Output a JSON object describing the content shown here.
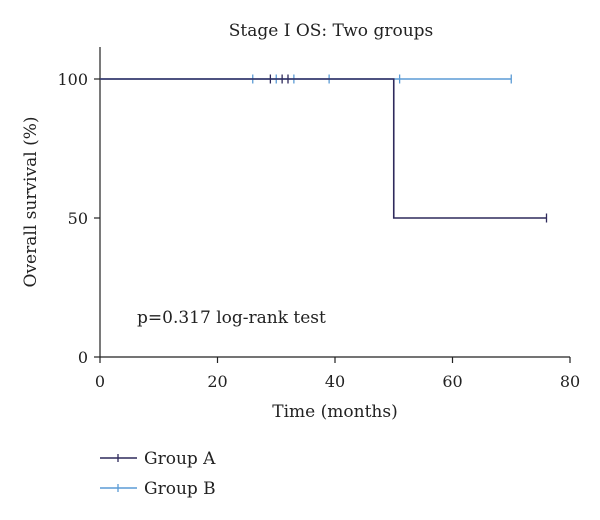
{
  "chart_data": {
    "type": "line",
    "step": true,
    "title": "Stage I OS: Two groups",
    "xlabel": "Time (months)",
    "ylabel": "Overall survival (%)",
    "xlim": [
      0,
      80
    ],
    "ylim": [
      0,
      100
    ],
    "xticks": [
      0,
      20,
      40,
      60,
      80
    ],
    "yticks": [
      0,
      50,
      100
    ],
    "grid": false,
    "annotation": "p=0.317 log-rank test",
    "legend_position": "bottom-left",
    "series": [
      {
        "name": "Group A",
        "color": "#2e2a5c",
        "points": [
          [
            0,
            100
          ],
          [
            50,
            100
          ],
          [
            50,
            50
          ],
          [
            76,
            50
          ]
        ],
        "censored": [
          [
            29,
            100
          ],
          [
            31,
            100
          ],
          [
            32,
            100
          ],
          [
            76,
            50
          ]
        ]
      },
      {
        "name": "Group B",
        "color": "#5b9bd5",
        "points": [
          [
            0,
            100
          ],
          [
            70,
            100
          ]
        ],
        "censored": [
          [
            26,
            100
          ],
          [
            30,
            100
          ],
          [
            33,
            100
          ],
          [
            39,
            100
          ],
          [
            51,
            100
          ],
          [
            70,
            100
          ]
        ]
      }
    ]
  }
}
